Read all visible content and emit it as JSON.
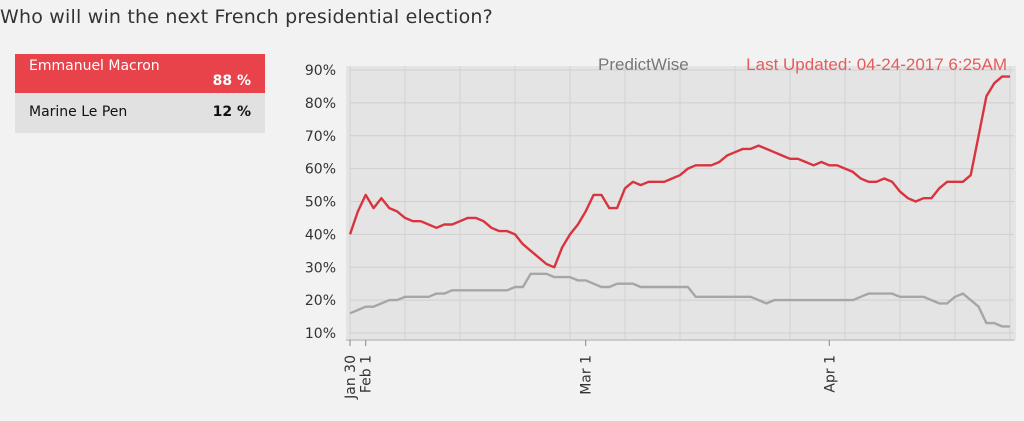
{
  "question": "Who will win the next French presidential election?",
  "candidates": [
    {
      "name": "Emmanuel Macron",
      "pct": "88 %",
      "color": "#e8424b"
    },
    {
      "name": "Marine Le Pen",
      "pct": "12 %",
      "color": "#999999"
    }
  ],
  "watermark": "PredictWise",
  "updated": "Last Updated:  04-24-2017  6:25AM",
  "chart_data": {
    "type": "line",
    "title": "",
    "xlabel": "",
    "ylabel": "",
    "ylim": [
      10,
      90
    ],
    "x_range": [
      "2017-01-30",
      "2017-04-24"
    ],
    "grid": true,
    "yticks": [
      "10%",
      "20%",
      "30%",
      "40%",
      "50%",
      "60%",
      "70%",
      "80%",
      "90%"
    ],
    "xticks": [
      {
        "date": "2017-01-30",
        "label": "Jan 30"
      },
      {
        "date": "2017-02-01",
        "label": "Feb 1"
      },
      {
        "date": "2017-03-01",
        "label": "Mar 1"
      },
      {
        "date": "2017-04-01",
        "label": "Apr 1"
      }
    ],
    "series": [
      {
        "name": "Emmanuel Macron",
        "color": "#d9343d",
        "points": [
          [
            "2017-01-30",
            40
          ],
          [
            "2017-01-31",
            47
          ],
          [
            "2017-02-01",
            52
          ],
          [
            "2017-02-02",
            48
          ],
          [
            "2017-02-03",
            51
          ],
          [
            "2017-02-04",
            48
          ],
          [
            "2017-02-05",
            47
          ],
          [
            "2017-02-06",
            45
          ],
          [
            "2017-02-07",
            44
          ],
          [
            "2017-02-08",
            44
          ],
          [
            "2017-02-09",
            43
          ],
          [
            "2017-02-10",
            42
          ],
          [
            "2017-02-11",
            43
          ],
          [
            "2017-02-12",
            43
          ],
          [
            "2017-02-13",
            44
          ],
          [
            "2017-02-14",
            45
          ],
          [
            "2017-02-15",
            45
          ],
          [
            "2017-02-16",
            44
          ],
          [
            "2017-02-17",
            42
          ],
          [
            "2017-02-18",
            41
          ],
          [
            "2017-02-19",
            41
          ],
          [
            "2017-02-20",
            40
          ],
          [
            "2017-02-21",
            37
          ],
          [
            "2017-02-22",
            35
          ],
          [
            "2017-02-23",
            33
          ],
          [
            "2017-02-24",
            31
          ],
          [
            "2017-02-25",
            30
          ],
          [
            "2017-02-26",
            36
          ],
          [
            "2017-02-27",
            40
          ],
          [
            "2017-02-28",
            43
          ],
          [
            "2017-03-01",
            47
          ],
          [
            "2017-03-02",
            52
          ],
          [
            "2017-03-03",
            52
          ],
          [
            "2017-03-04",
            48
          ],
          [
            "2017-03-05",
            48
          ],
          [
            "2017-03-06",
            54
          ],
          [
            "2017-03-07",
            56
          ],
          [
            "2017-03-08",
            55
          ],
          [
            "2017-03-09",
            56
          ],
          [
            "2017-03-10",
            56
          ],
          [
            "2017-03-11",
            56
          ],
          [
            "2017-03-12",
            57
          ],
          [
            "2017-03-13",
            58
          ],
          [
            "2017-03-14",
            60
          ],
          [
            "2017-03-15",
            61
          ],
          [
            "2017-03-16",
            61
          ],
          [
            "2017-03-17",
            61
          ],
          [
            "2017-03-18",
            62
          ],
          [
            "2017-03-19",
            64
          ],
          [
            "2017-03-20",
            65
          ],
          [
            "2017-03-21",
            66
          ],
          [
            "2017-03-22",
            66
          ],
          [
            "2017-03-23",
            67
          ],
          [
            "2017-03-24",
            66
          ],
          [
            "2017-03-25",
            65
          ],
          [
            "2017-03-26",
            64
          ],
          [
            "2017-03-27",
            63
          ],
          [
            "2017-03-28",
            63
          ],
          [
            "2017-03-29",
            62
          ],
          [
            "2017-03-30",
            61
          ],
          [
            "2017-03-31",
            62
          ],
          [
            "2017-04-01",
            61
          ],
          [
            "2017-04-02",
            61
          ],
          [
            "2017-04-03",
            60
          ],
          [
            "2017-04-04",
            59
          ],
          [
            "2017-04-05",
            57
          ],
          [
            "2017-04-06",
            56
          ],
          [
            "2017-04-07",
            56
          ],
          [
            "2017-04-08",
            57
          ],
          [
            "2017-04-09",
            56
          ],
          [
            "2017-04-10",
            53
          ],
          [
            "2017-04-11",
            51
          ],
          [
            "2017-04-12",
            50
          ],
          [
            "2017-04-13",
            51
          ],
          [
            "2017-04-14",
            51
          ],
          [
            "2017-04-15",
            54
          ],
          [
            "2017-04-16",
            56
          ],
          [
            "2017-04-17",
            56
          ],
          [
            "2017-04-18",
            56
          ],
          [
            "2017-04-19",
            58
          ],
          [
            "2017-04-20",
            70
          ],
          [
            "2017-04-21",
            82
          ],
          [
            "2017-04-22",
            86
          ],
          [
            "2017-04-23",
            88
          ],
          [
            "2017-04-24",
            88
          ]
        ]
      },
      {
        "name": "Marine Le Pen",
        "color": "#a6a6a6",
        "points": [
          [
            "2017-01-30",
            16
          ],
          [
            "2017-01-31",
            17
          ],
          [
            "2017-02-01",
            18
          ],
          [
            "2017-02-02",
            18
          ],
          [
            "2017-02-03",
            19
          ],
          [
            "2017-02-04",
            20
          ],
          [
            "2017-02-05",
            20
          ],
          [
            "2017-02-06",
            21
          ],
          [
            "2017-02-07",
            21
          ],
          [
            "2017-02-08",
            21
          ],
          [
            "2017-02-09",
            21
          ],
          [
            "2017-02-10",
            22
          ],
          [
            "2017-02-11",
            22
          ],
          [
            "2017-02-12",
            23
          ],
          [
            "2017-02-13",
            23
          ],
          [
            "2017-02-14",
            23
          ],
          [
            "2017-02-15",
            23
          ],
          [
            "2017-02-16",
            23
          ],
          [
            "2017-02-17",
            23
          ],
          [
            "2017-02-18",
            23
          ],
          [
            "2017-02-19",
            23
          ],
          [
            "2017-02-20",
            24
          ],
          [
            "2017-02-21",
            24
          ],
          [
            "2017-02-22",
            28
          ],
          [
            "2017-02-23",
            28
          ],
          [
            "2017-02-24",
            28
          ],
          [
            "2017-02-25",
            27
          ],
          [
            "2017-02-26",
            27
          ],
          [
            "2017-02-27",
            27
          ],
          [
            "2017-02-28",
            26
          ],
          [
            "2017-03-01",
            26
          ],
          [
            "2017-03-02",
            25
          ],
          [
            "2017-03-03",
            24
          ],
          [
            "2017-03-04",
            24
          ],
          [
            "2017-03-05",
            25
          ],
          [
            "2017-03-06",
            25
          ],
          [
            "2017-03-07",
            25
          ],
          [
            "2017-03-08",
            24
          ],
          [
            "2017-03-09",
            24
          ],
          [
            "2017-03-10",
            24
          ],
          [
            "2017-03-11",
            24
          ],
          [
            "2017-03-12",
            24
          ],
          [
            "2017-03-13",
            24
          ],
          [
            "2017-03-14",
            24
          ],
          [
            "2017-03-15",
            21
          ],
          [
            "2017-03-16",
            21
          ],
          [
            "2017-03-17",
            21
          ],
          [
            "2017-03-18",
            21
          ],
          [
            "2017-03-19",
            21
          ],
          [
            "2017-03-20",
            21
          ],
          [
            "2017-03-21",
            21
          ],
          [
            "2017-03-22",
            21
          ],
          [
            "2017-03-23",
            20
          ],
          [
            "2017-03-24",
            19
          ],
          [
            "2017-03-25",
            20
          ],
          [
            "2017-03-26",
            20
          ],
          [
            "2017-03-27",
            20
          ],
          [
            "2017-03-28",
            20
          ],
          [
            "2017-03-29",
            20
          ],
          [
            "2017-03-30",
            20
          ],
          [
            "2017-03-31",
            20
          ],
          [
            "2017-04-01",
            20
          ],
          [
            "2017-04-02",
            20
          ],
          [
            "2017-04-03",
            20
          ],
          [
            "2017-04-04",
            20
          ],
          [
            "2017-04-05",
            21
          ],
          [
            "2017-04-06",
            22
          ],
          [
            "2017-04-07",
            22
          ],
          [
            "2017-04-08",
            22
          ],
          [
            "2017-04-09",
            22
          ],
          [
            "2017-04-10",
            21
          ],
          [
            "2017-04-11",
            21
          ],
          [
            "2017-04-12",
            21
          ],
          [
            "2017-04-13",
            21
          ],
          [
            "2017-04-14",
            20
          ],
          [
            "2017-04-15",
            19
          ],
          [
            "2017-04-16",
            19
          ],
          [
            "2017-04-17",
            21
          ],
          [
            "2017-04-18",
            22
          ],
          [
            "2017-04-19",
            20
          ],
          [
            "2017-04-20",
            18
          ],
          [
            "2017-04-21",
            13
          ],
          [
            "2017-04-22",
            13
          ],
          [
            "2017-04-23",
            12
          ],
          [
            "2017-04-24",
            12
          ]
        ]
      }
    ]
  }
}
